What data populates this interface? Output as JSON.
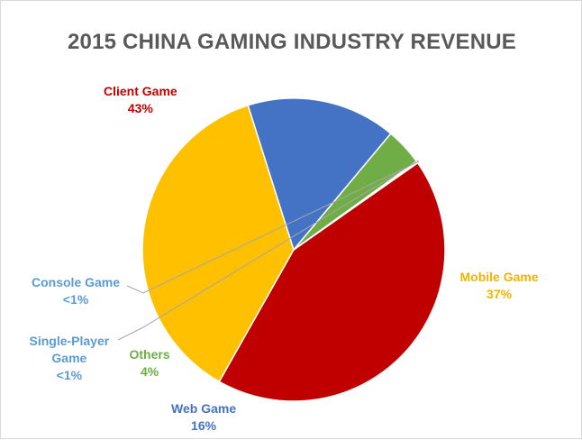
{
  "chart_data": {
    "type": "pie",
    "title": "2015 CHINA GAMING INDUSTRY REVENUE",
    "slices": [
      {
        "name": "Client Game",
        "value": 43,
        "label": "43%",
        "color": "#c00000"
      },
      {
        "name": "Mobile Game",
        "value": 37,
        "label": "37%",
        "color": "#ffc000"
      },
      {
        "name": "Web Game",
        "value": 16,
        "label": "16%",
        "color": "#4472c4"
      },
      {
        "name": "Others",
        "value": 4,
        "label": "4%",
        "color": "#70ad47"
      },
      {
        "name": "Single-Player\nGame",
        "value": 0.1,
        "label": "<1%",
        "color": "#7fb8e0"
      },
      {
        "name": "Console Game",
        "value": 0.1,
        "label": "<1%",
        "color": "#5b9bd5"
      }
    ]
  }
}
